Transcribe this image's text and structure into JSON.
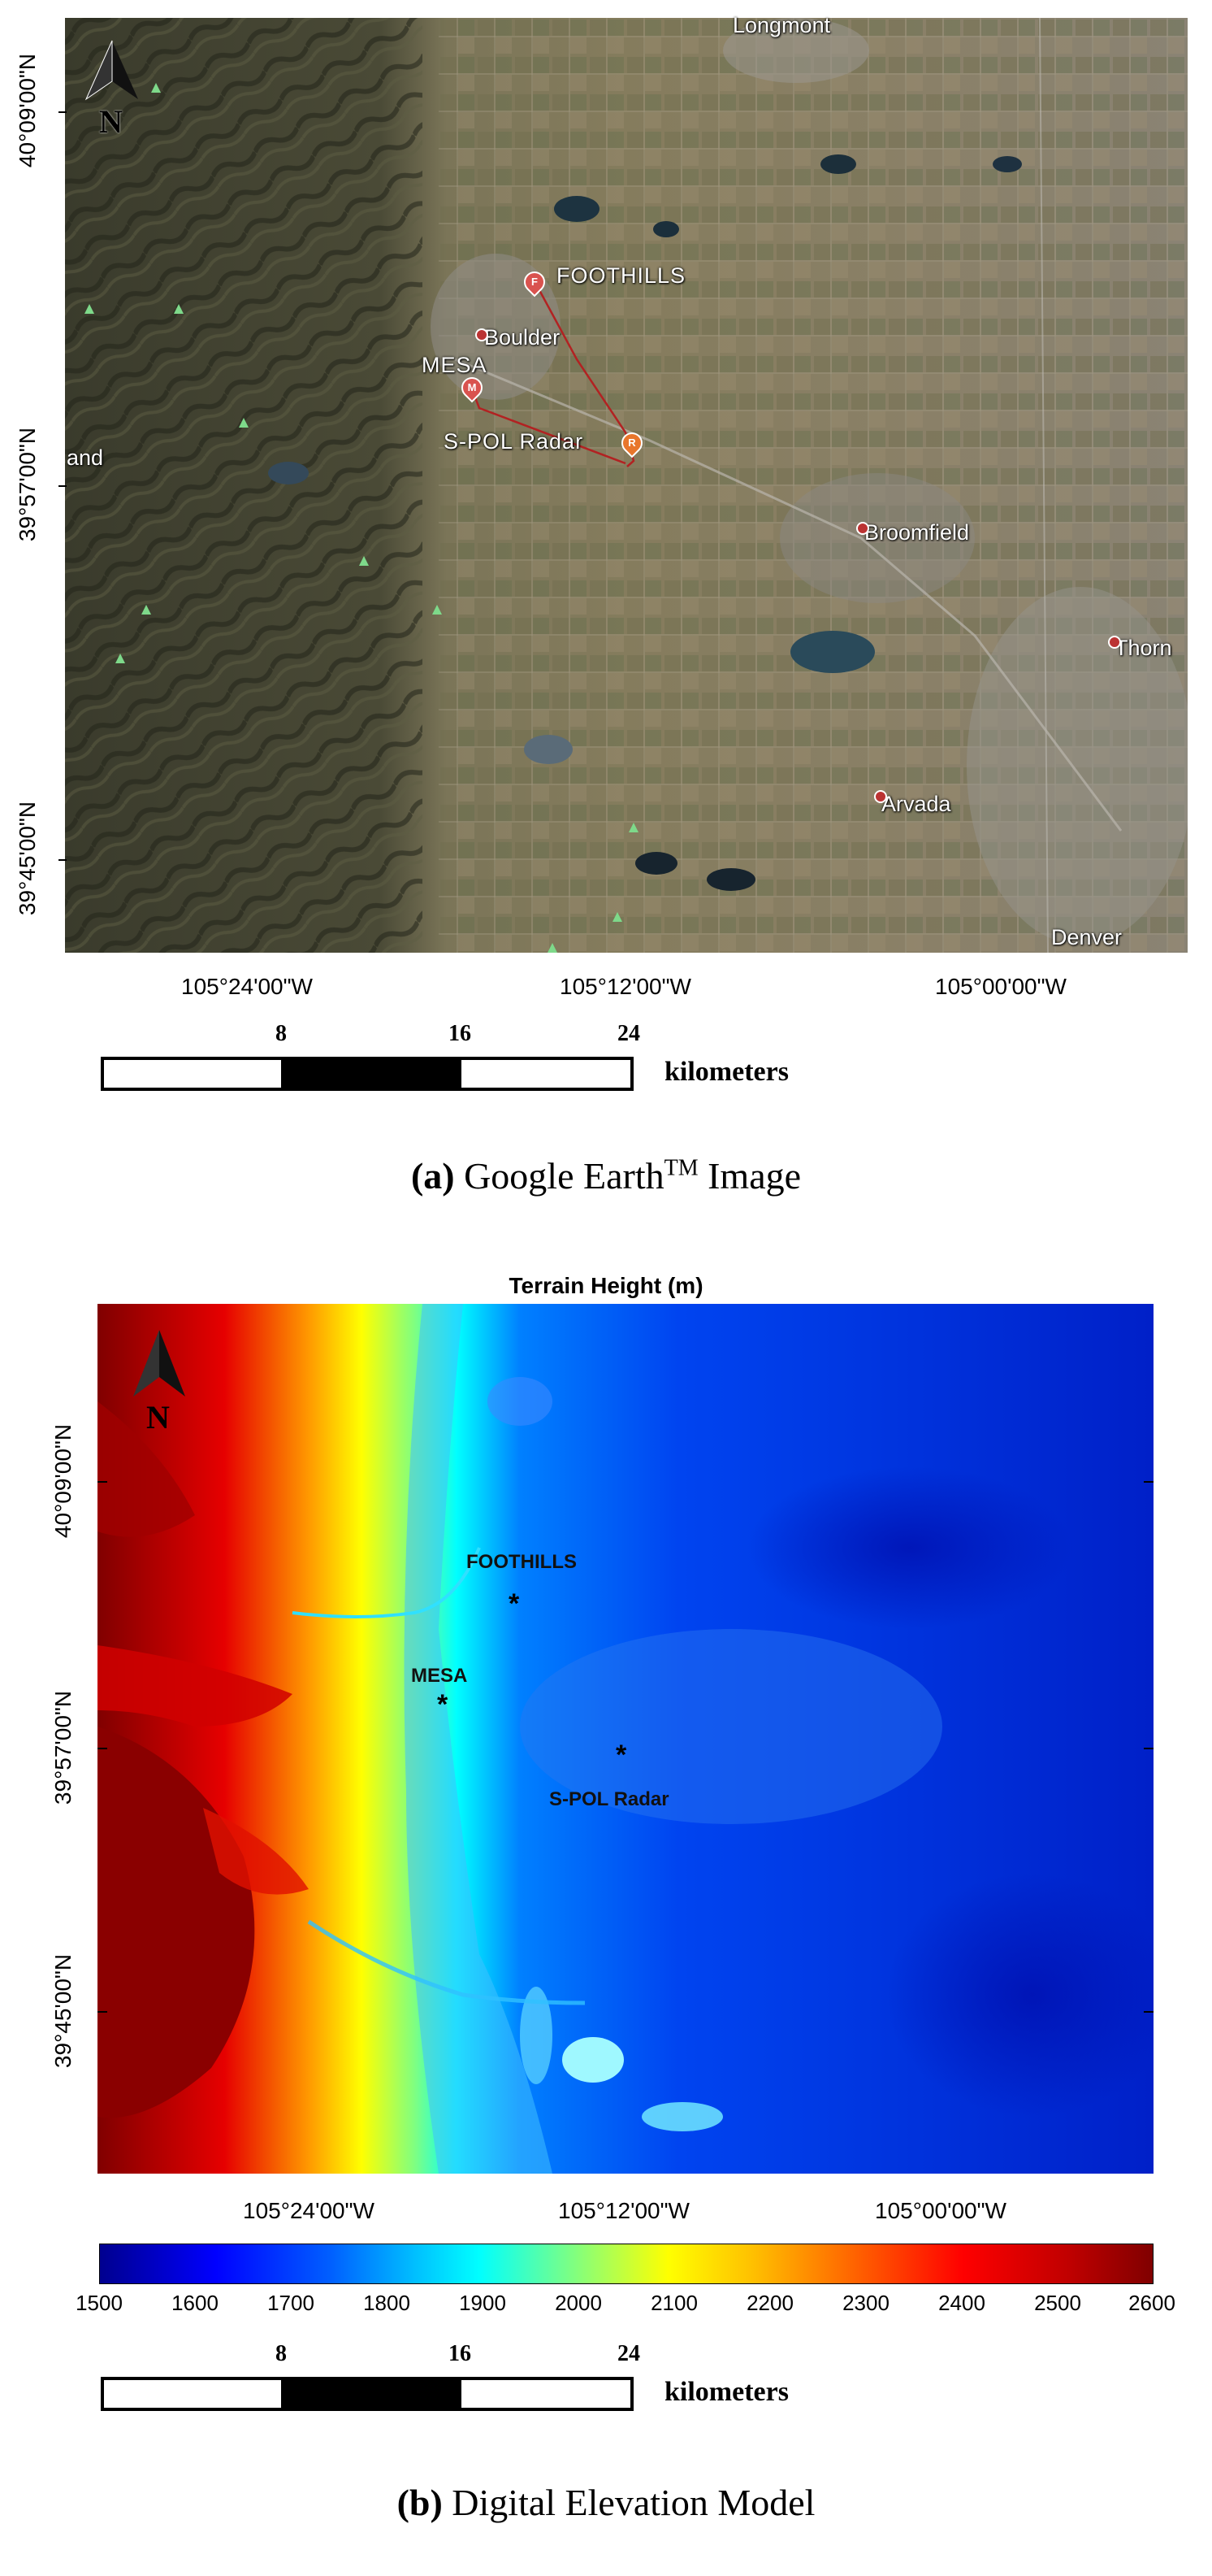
{
  "figure_a": {
    "caption_letter": "(a)",
    "caption_text": "Google Earth",
    "caption_tm": "TM",
    "caption_end": "Image",
    "north_label": "N",
    "lat_labels": [
      "40°09'00\"N",
      "39°57'00\"N",
      "39°45'00\"N"
    ],
    "lon_labels": [
      "105°24'00\"W",
      "105°12'00\"W",
      "105°00'00\"W"
    ],
    "places": {
      "longmont": "Longmont",
      "boulder": "Boulder",
      "broomfield": "Broomfield",
      "thornton": "Thorn",
      "arvada": "Arvada",
      "denver": "Denver",
      "nederland": "and"
    },
    "sites": {
      "foothills": "FOOTHILLS",
      "mesa": "MESA",
      "spol": "S-POL Radar"
    },
    "pin_letters": {
      "foothills": "F",
      "mesa": "M",
      "spol": "R"
    },
    "colors": {
      "pin": "#d9534f",
      "spol_pin": "#e8762c",
      "line": "#b22222"
    }
  },
  "figure_b": {
    "caption_letter": "(b)",
    "caption_text": "Digital Elevation Model",
    "map_title": "Terrain Height (m)",
    "north_label": "N",
    "lat_labels": [
      "40°09'00\"N",
      "39°57'00\"N",
      "39°45'00\"N"
    ],
    "lon_labels": [
      "105°24'00\"W",
      "105°12'00\"W",
      "105°00'00\"W"
    ],
    "sites": {
      "foothills": "FOOTHILLS",
      "mesa": "MESA",
      "spol": "S-POL Radar"
    },
    "marker": "*",
    "colorbar": {
      "labels": [
        "1500",
        "1600",
        "1700",
        "1800",
        "1900",
        "2000",
        "2100",
        "2200",
        "2300",
        "2400",
        "2500",
        "2600"
      ],
      "min": 1500,
      "max": 2600,
      "colormap": "jet"
    }
  },
  "scalebar": {
    "ticks": [
      "8",
      "16",
      "24"
    ],
    "unit": "kilometers"
  }
}
